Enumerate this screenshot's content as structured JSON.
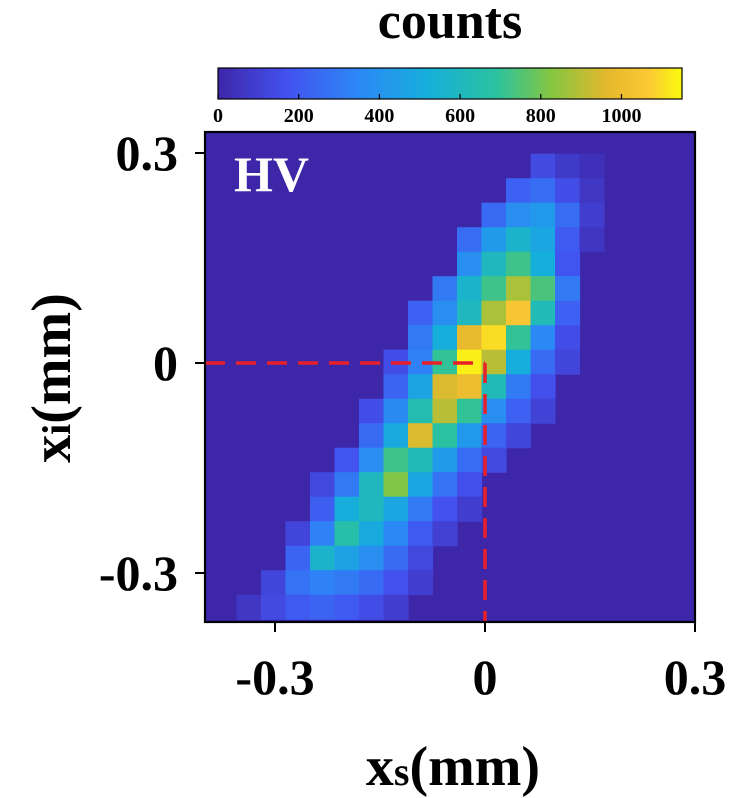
{
  "chart_data": {
    "type": "heatmap",
    "panel_label": "HV",
    "colorbar": {
      "title": "counts",
      "min": 0,
      "max": 1150,
      "ticks": [
        0,
        200,
        400,
        600,
        800,
        1000
      ],
      "tick_labels": [
        "0",
        "200",
        "400",
        "600",
        "800",
        "1000"
      ]
    },
    "x_axis": {
      "label_main": "x",
      "label_sub": "s",
      "label_unit": "(mm)",
      "range": [
        -0.4,
        0.3
      ],
      "ticks": [
        -0.3,
        0,
        0.3
      ],
      "tick_labels": [
        "-0.3",
        "0",
        "0.3"
      ]
    },
    "y_axis": {
      "label_main": "x",
      "label_sub": "i",
      "label_unit": "(mm)",
      "range": [
        -0.37,
        0.33
      ],
      "ticks": [
        -0.3,
        0,
        0.3
      ],
      "tick_labels": [
        "-0.3",
        "0",
        "0.3"
      ]
    },
    "guide_lines": {
      "x": 0,
      "y": 0,
      "color": "#e8202a",
      "style": "dashed"
    },
    "colormap": "parula",
    "background_count": 0,
    "cell_size_mm": 0.035,
    "note_cells": "cells listed as [x_center_mm, y_center_mm, counts]",
    "cells": [
      [
        0.0825,
        0.2815,
        140
      ],
      [
        0.1175,
        0.2815,
        80
      ],
      [
        0.1525,
        0.2815,
        40
      ],
      [
        0.0475,
        0.2465,
        220
      ],
      [
        0.0825,
        0.2465,
        260
      ],
      [
        0.1175,
        0.2465,
        150
      ],
      [
        0.1525,
        0.2465,
        70
      ],
      [
        0.0125,
        0.2115,
        250
      ],
      [
        0.0475,
        0.2115,
        380
      ],
      [
        0.0825,
        0.2115,
        420
      ],
      [
        0.1175,
        0.2115,
        260
      ],
      [
        0.1525,
        0.2115,
        90
      ],
      [
        -0.0225,
        0.1765,
        260
      ],
      [
        0.0125,
        0.1765,
        430
      ],
      [
        0.0475,
        0.1765,
        560
      ],
      [
        0.0825,
        0.1765,
        480
      ],
      [
        0.1175,
        0.1765,
        200
      ],
      [
        0.1525,
        0.1765,
        60
      ],
      [
        -0.0225,
        0.1415,
        380
      ],
      [
        0.0125,
        0.1415,
        600
      ],
      [
        0.0475,
        0.1415,
        720
      ],
      [
        0.0825,
        0.1415,
        520
      ],
      [
        0.1175,
        0.1415,
        180
      ],
      [
        -0.0575,
        0.1065,
        300
      ],
      [
        -0.0225,
        0.1065,
        560
      ],
      [
        0.0125,
        0.1065,
        720
      ],
      [
        0.0475,
        0.1065,
        880
      ],
      [
        0.0825,
        0.1065,
        740
      ],
      [
        0.1175,
        0.1065,
        300
      ],
      [
        -0.0925,
        0.0715,
        220
      ],
      [
        -0.0575,
        0.0715,
        380
      ],
      [
        -0.0225,
        0.0715,
        600
      ],
      [
        0.0125,
        0.0715,
        880
      ],
      [
        0.0475,
        0.0715,
        1050
      ],
      [
        0.0825,
        0.0715,
        620
      ],
      [
        0.1175,
        0.0715,
        220
      ],
      [
        -0.0925,
        0.0365,
        300
      ],
      [
        -0.0575,
        0.0365,
        520
      ],
      [
        -0.0225,
        0.0365,
        980
      ],
      [
        0.0125,
        0.0365,
        1100
      ],
      [
        0.0475,
        0.0365,
        700
      ],
      [
        0.0825,
        0.0365,
        350
      ],
      [
        0.1175,
        0.0365,
        150
      ],
      [
        -0.1275,
        0.0015,
        150
      ],
      [
        -0.0925,
        0.0015,
        330
      ],
      [
        -0.0575,
        0.0015,
        700
      ],
      [
        -0.0225,
        0.0015,
        1130
      ],
      [
        0.0125,
        0.0015,
        900
      ],
      [
        0.0475,
        0.0015,
        520
      ],
      [
        0.0825,
        0.0015,
        250
      ],
      [
        0.1175,
        0.0015,
        120
      ],
      [
        -0.1275,
        -0.0335,
        230
      ],
      [
        -0.0925,
        -0.0335,
        470
      ],
      [
        -0.0575,
        -0.0335,
        950
      ],
      [
        -0.0225,
        -0.0335,
        1000
      ],
      [
        0.0125,
        -0.0335,
        620
      ],
      [
        0.0475,
        -0.0335,
        310
      ],
      [
        0.0825,
        -0.0335,
        160
      ],
      [
        -0.1625,
        -0.0685,
        150
      ],
      [
        -0.1275,
        -0.0685,
        360
      ],
      [
        -0.0925,
        -0.0685,
        640
      ],
      [
        -0.0575,
        -0.0685,
        900
      ],
      [
        -0.0225,
        -0.0685,
        700
      ],
      [
        0.0125,
        -0.0685,
        380
      ],
      [
        0.0475,
        -0.0685,
        220
      ],
      [
        0.0825,
        -0.0685,
        110
      ],
      [
        -0.1625,
        -0.1035,
        250
      ],
      [
        -0.1275,
        -0.1035,
        500
      ],
      [
        -0.0925,
        -0.1035,
        950
      ],
      [
        -0.0575,
        -0.1035,
        680
      ],
      [
        -0.0225,
        -0.1035,
        420
      ],
      [
        0.0125,
        -0.1035,
        230
      ],
      [
        0.0475,
        -0.1035,
        120
      ],
      [
        -0.1975,
        -0.1385,
        180
      ],
      [
        -0.1625,
        -0.1385,
        380
      ],
      [
        -0.1275,
        -0.1385,
        720
      ],
      [
        -0.0925,
        -0.1385,
        620
      ],
      [
        -0.0575,
        -0.1385,
        430
      ],
      [
        -0.0225,
        -0.1385,
        260
      ],
      [
        0.0125,
        -0.1385,
        140
      ],
      [
        -0.2325,
        -0.1735,
        130
      ],
      [
        -0.1975,
        -0.1735,
        300
      ],
      [
        -0.1625,
        -0.1735,
        600
      ],
      [
        -0.1275,
        -0.1735,
        820
      ],
      [
        -0.0925,
        -0.1735,
        480
      ],
      [
        -0.0575,
        -0.1735,
        280
      ],
      [
        -0.0225,
        -0.1735,
        160
      ],
      [
        -0.2325,
        -0.2085,
        210
      ],
      [
        -0.1975,
        -0.2085,
        520
      ],
      [
        -0.1625,
        -0.2085,
        600
      ],
      [
        -0.1275,
        -0.2085,
        480
      ],
      [
        -0.0925,
        -0.2085,
        300
      ],
      [
        -0.0575,
        -0.2085,
        170
      ],
      [
        -0.0225,
        -0.2085,
        90
      ],
      [
        -0.2675,
        -0.2435,
        120
      ],
      [
        -0.2325,
        -0.2435,
        330
      ],
      [
        -0.1975,
        -0.2435,
        660
      ],
      [
        -0.1625,
        -0.2435,
        500
      ],
      [
        -0.1275,
        -0.2435,
        350
      ],
      [
        -0.0925,
        -0.2435,
        200
      ],
      [
        -0.0575,
        -0.2435,
        100
      ],
      [
        -0.2675,
        -0.2785,
        230
      ],
      [
        -0.2325,
        -0.2785,
        560
      ],
      [
        -0.1975,
        -0.2785,
        460
      ],
      [
        -0.1625,
        -0.2785,
        380
      ],
      [
        -0.1275,
        -0.2785,
        250
      ],
      [
        -0.0925,
        -0.2785,
        130
      ],
      [
        -0.3025,
        -0.3135,
        120
      ],
      [
        -0.2675,
        -0.3135,
        280
      ],
      [
        -0.2325,
        -0.3135,
        330
      ],
      [
        -0.1975,
        -0.3135,
        300
      ],
      [
        -0.1625,
        -0.3135,
        250
      ],
      [
        -0.1275,
        -0.3135,
        170
      ],
      [
        -0.0925,
        -0.3135,
        90
      ],
      [
        -0.3375,
        -0.3485,
        70
      ],
      [
        -0.3025,
        -0.3485,
        140
      ],
      [
        -0.2675,
        -0.3485,
        200
      ],
      [
        -0.2325,
        -0.3485,
        230
      ],
      [
        -0.1975,
        -0.3485,
        200
      ],
      [
        -0.1625,
        -0.3485,
        150
      ],
      [
        -0.1275,
        -0.3485,
        90
      ]
    ]
  }
}
